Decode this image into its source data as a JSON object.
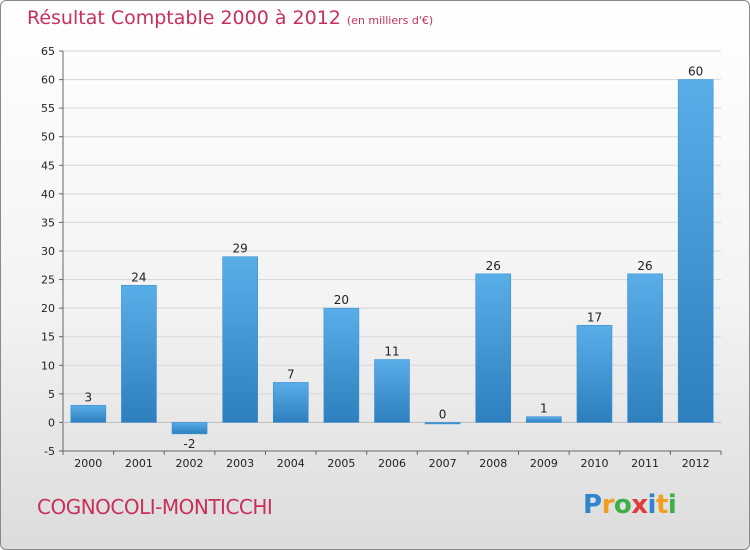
{
  "header": {
    "title": "Résultat Comptable 2000 à 2012",
    "subtitle": "(en milliers d'€)"
  },
  "footer": {
    "commune": "COGNOCOLI-MONTICCHI",
    "logo": [
      "P",
      "r",
      "o",
      "x",
      "i",
      "t",
      "i"
    ]
  },
  "colors": {
    "title": "#c8305a",
    "bar_light": "#5aaee8",
    "bar_dark": "#2d7fbd",
    "logo": [
      "#2e86d1",
      "#f0a020",
      "#3fae49",
      "#e23a3a",
      "#2e86d1",
      "#f0a020",
      "#3fae49"
    ]
  },
  "chart_data": {
    "type": "bar",
    "title": "Résultat Comptable 2000 à 2012",
    "ylabel": "en milliers d'€",
    "categories": [
      "2000",
      "2001",
      "2002",
      "2003",
      "2004",
      "2005",
      "2006",
      "2007",
      "2008",
      "2009",
      "2010",
      "2011",
      "2012"
    ],
    "values": [
      3,
      24,
      -2,
      29,
      7,
      20,
      11,
      0,
      26,
      1,
      17,
      26,
      60
    ],
    "ylim": [
      -5,
      65
    ],
    "yticks": [
      -5,
      0,
      5,
      10,
      15,
      20,
      25,
      30,
      35,
      40,
      45,
      50,
      55,
      60,
      65
    ],
    "grid": true
  }
}
